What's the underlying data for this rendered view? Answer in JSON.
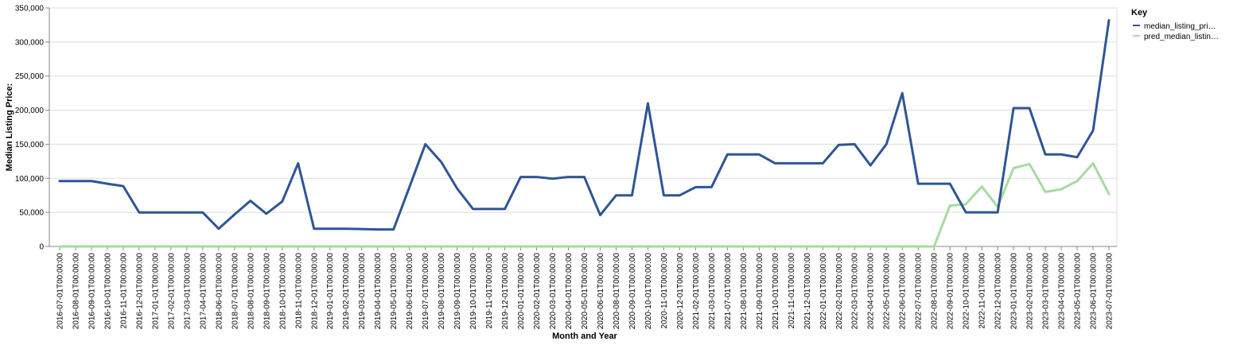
{
  "chart_data": {
    "type": "line",
    "xlabel": "Month and Year",
    "ylabel": "Median Listing Price:",
    "ylim": [
      0,
      350000
    ],
    "yticks": [
      "0",
      "50,000",
      "100,000",
      "150,000",
      "200,000",
      "250,000",
      "300,000",
      "350,000"
    ],
    "yticks_values": [
      0,
      50000,
      100000,
      150000,
      200000,
      250000,
      300000,
      350000
    ],
    "grid": true,
    "legend": {
      "title": "Key",
      "placement": "top-right"
    },
    "categories": [
      "2016-07-01T00:00:00",
      "2016-08-01T00:00:00",
      "2016-09-01T00:00:00",
      "2016-10-01T00:00:00",
      "2016-11-01T00:00:00",
      "2016-12-01T00:00:00",
      "2017-01-01T00:00:00",
      "2017-02-01T00:00:00",
      "2017-03-01T00:00:00",
      "2017-04-01T00:00:00",
      "2018-06-01T00:00:00",
      "2018-07-01T00:00:00",
      "2018-08-01T00:00:00",
      "2018-09-01T00:00:00",
      "2018-10-01T00:00:00",
      "2018-11-01T00:00:00",
      "2018-12-01T00:00:00",
      "2019-01-01T00:00:00",
      "2019-02-01T00:00:00",
      "2019-03-01T00:00:00",
      "2019-04-01T00:00:00",
      "2019-05-01T00:00:00",
      "2019-06-01T00:00:00",
      "2019-07-01T00:00:00",
      "2019-08-01T00:00:00",
      "2019-09-01T00:00:00",
      "2019-10-01T00:00:00",
      "2019-11-01T00:00:00",
      "2019-12-01T00:00:00",
      "2020-01-01T00:00:00",
      "2020-02-01T00:00:00",
      "2020-03-01T00:00:00",
      "2020-04-01T00:00:00",
      "2020-05-01T00:00:00",
      "2020-06-01T00:00:00",
      "2020-08-01T00:00:00",
      "2020-09-01T00:00:00",
      "2020-10-01T00:00:00",
      "2020-11-01T00:00:00",
      "2020-12-01T00:00:00",
      "2021-02-01T00:00:00",
      "2021-03-01T00:00:00",
      "2021-07-01T00:00:00",
      "2021-08-01T00:00:00",
      "2021-09-01T00:00:00",
      "2021-10-01T00:00:00",
      "2021-11-01T00:00:00",
      "2021-12-01T00:00:00",
      "2022-01-01T00:00:00",
      "2022-02-01T00:00:00",
      "2022-03-01T00:00:00",
      "2022-04-01T00:00:00",
      "2022-05-01T00:00:00",
      "2022-06-01T00:00:00",
      "2022-07-01T00:00:00",
      "2022-08-01T00:00:00",
      "2022-09-01T00:00:00",
      "2022-10-01T00:00:00",
      "2022-11-01T00:00:00",
      "2022-12-01T00:00:00",
      "2023-01-01T00:00:00",
      "2023-02-01T00:00:00",
      "2023-03-01T00:00:00",
      "2023-04-01T00:00:00",
      "2023-05-01T00:00:00",
      "2023-06-01T00:00:00",
      "2023-07-01T00:00:00"
    ],
    "series": [
      {
        "name": "median_listing_pri…",
        "color": "#2e5596",
        "values": [
          96000,
          96000,
          96000,
          92000,
          88500,
          49900,
          49900,
          49900,
          49900,
          49900,
          26000,
          47000,
          67000,
          48000,
          66000,
          122000,
          26000,
          26000,
          26000,
          25500,
          25000,
          25000,
          87000,
          150000,
          124000,
          85000,
          55000,
          55000,
          55000,
          102000,
          102000,
          99500,
          102000,
          102000,
          46000,
          75000,
          75000,
          210000,
          75000,
          75000,
          87000,
          87000,
          135000,
          135000,
          135000,
          122000,
          122000,
          122000,
          122000,
          149000,
          150000,
          119000,
          150000,
          225000,
          92000,
          92000,
          92000,
          50000,
          50000,
          50000,
          203000,
          203000,
          135000,
          135000,
          131000,
          170000,
          332000
        ]
      },
      {
        "name": "pred_median_listin…",
        "color": "#a6dba0",
        "values": [
          0,
          0,
          0,
          0,
          0,
          0,
          0,
          0,
          0,
          0,
          0,
          0,
          0,
          0,
          0,
          0,
          0,
          0,
          0,
          0,
          0,
          0,
          0,
          0,
          0,
          0,
          0,
          0,
          0,
          0,
          0,
          0,
          0,
          0,
          0,
          0,
          0,
          0,
          0,
          0,
          0,
          0,
          0,
          0,
          0,
          0,
          0,
          0,
          0,
          0,
          0,
          0,
          0,
          0,
          0,
          0,
          60000,
          62000,
          88000,
          58000,
          115000,
          121000,
          80000,
          84000,
          96000,
          122000,
          77000
        ]
      }
    ]
  }
}
